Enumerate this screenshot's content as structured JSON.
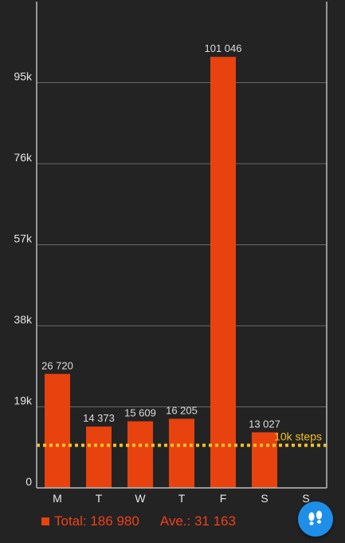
{
  "chart_data": {
    "type": "bar",
    "categories": [
      "M",
      "T",
      "W",
      "T",
      "F",
      "S",
      "S"
    ],
    "values": [
      26720,
      14373,
      15609,
      16205,
      101046,
      13027,
      null
    ],
    "value_labels": [
      "26 720",
      "14 373",
      "15 609",
      "16 205",
      "101 046",
      "13 027",
      ""
    ],
    "ylim": [
      0,
      114000
    ],
    "yticks": [
      0,
      19000,
      38000,
      57000,
      76000,
      95000
    ],
    "ytick_labels": [
      "0",
      "19k",
      "38k",
      "57k",
      "76k",
      "95k"
    ],
    "grid": true,
    "target_line": {
      "value": 10000,
      "label": "10k steps",
      "color": "#f3c228"
    },
    "bar_color": "#e8420f"
  },
  "summary": {
    "total": "Total: 186 980",
    "average": "Ave.: 31 163"
  },
  "fab": {
    "icon": "footsteps-icon"
  }
}
